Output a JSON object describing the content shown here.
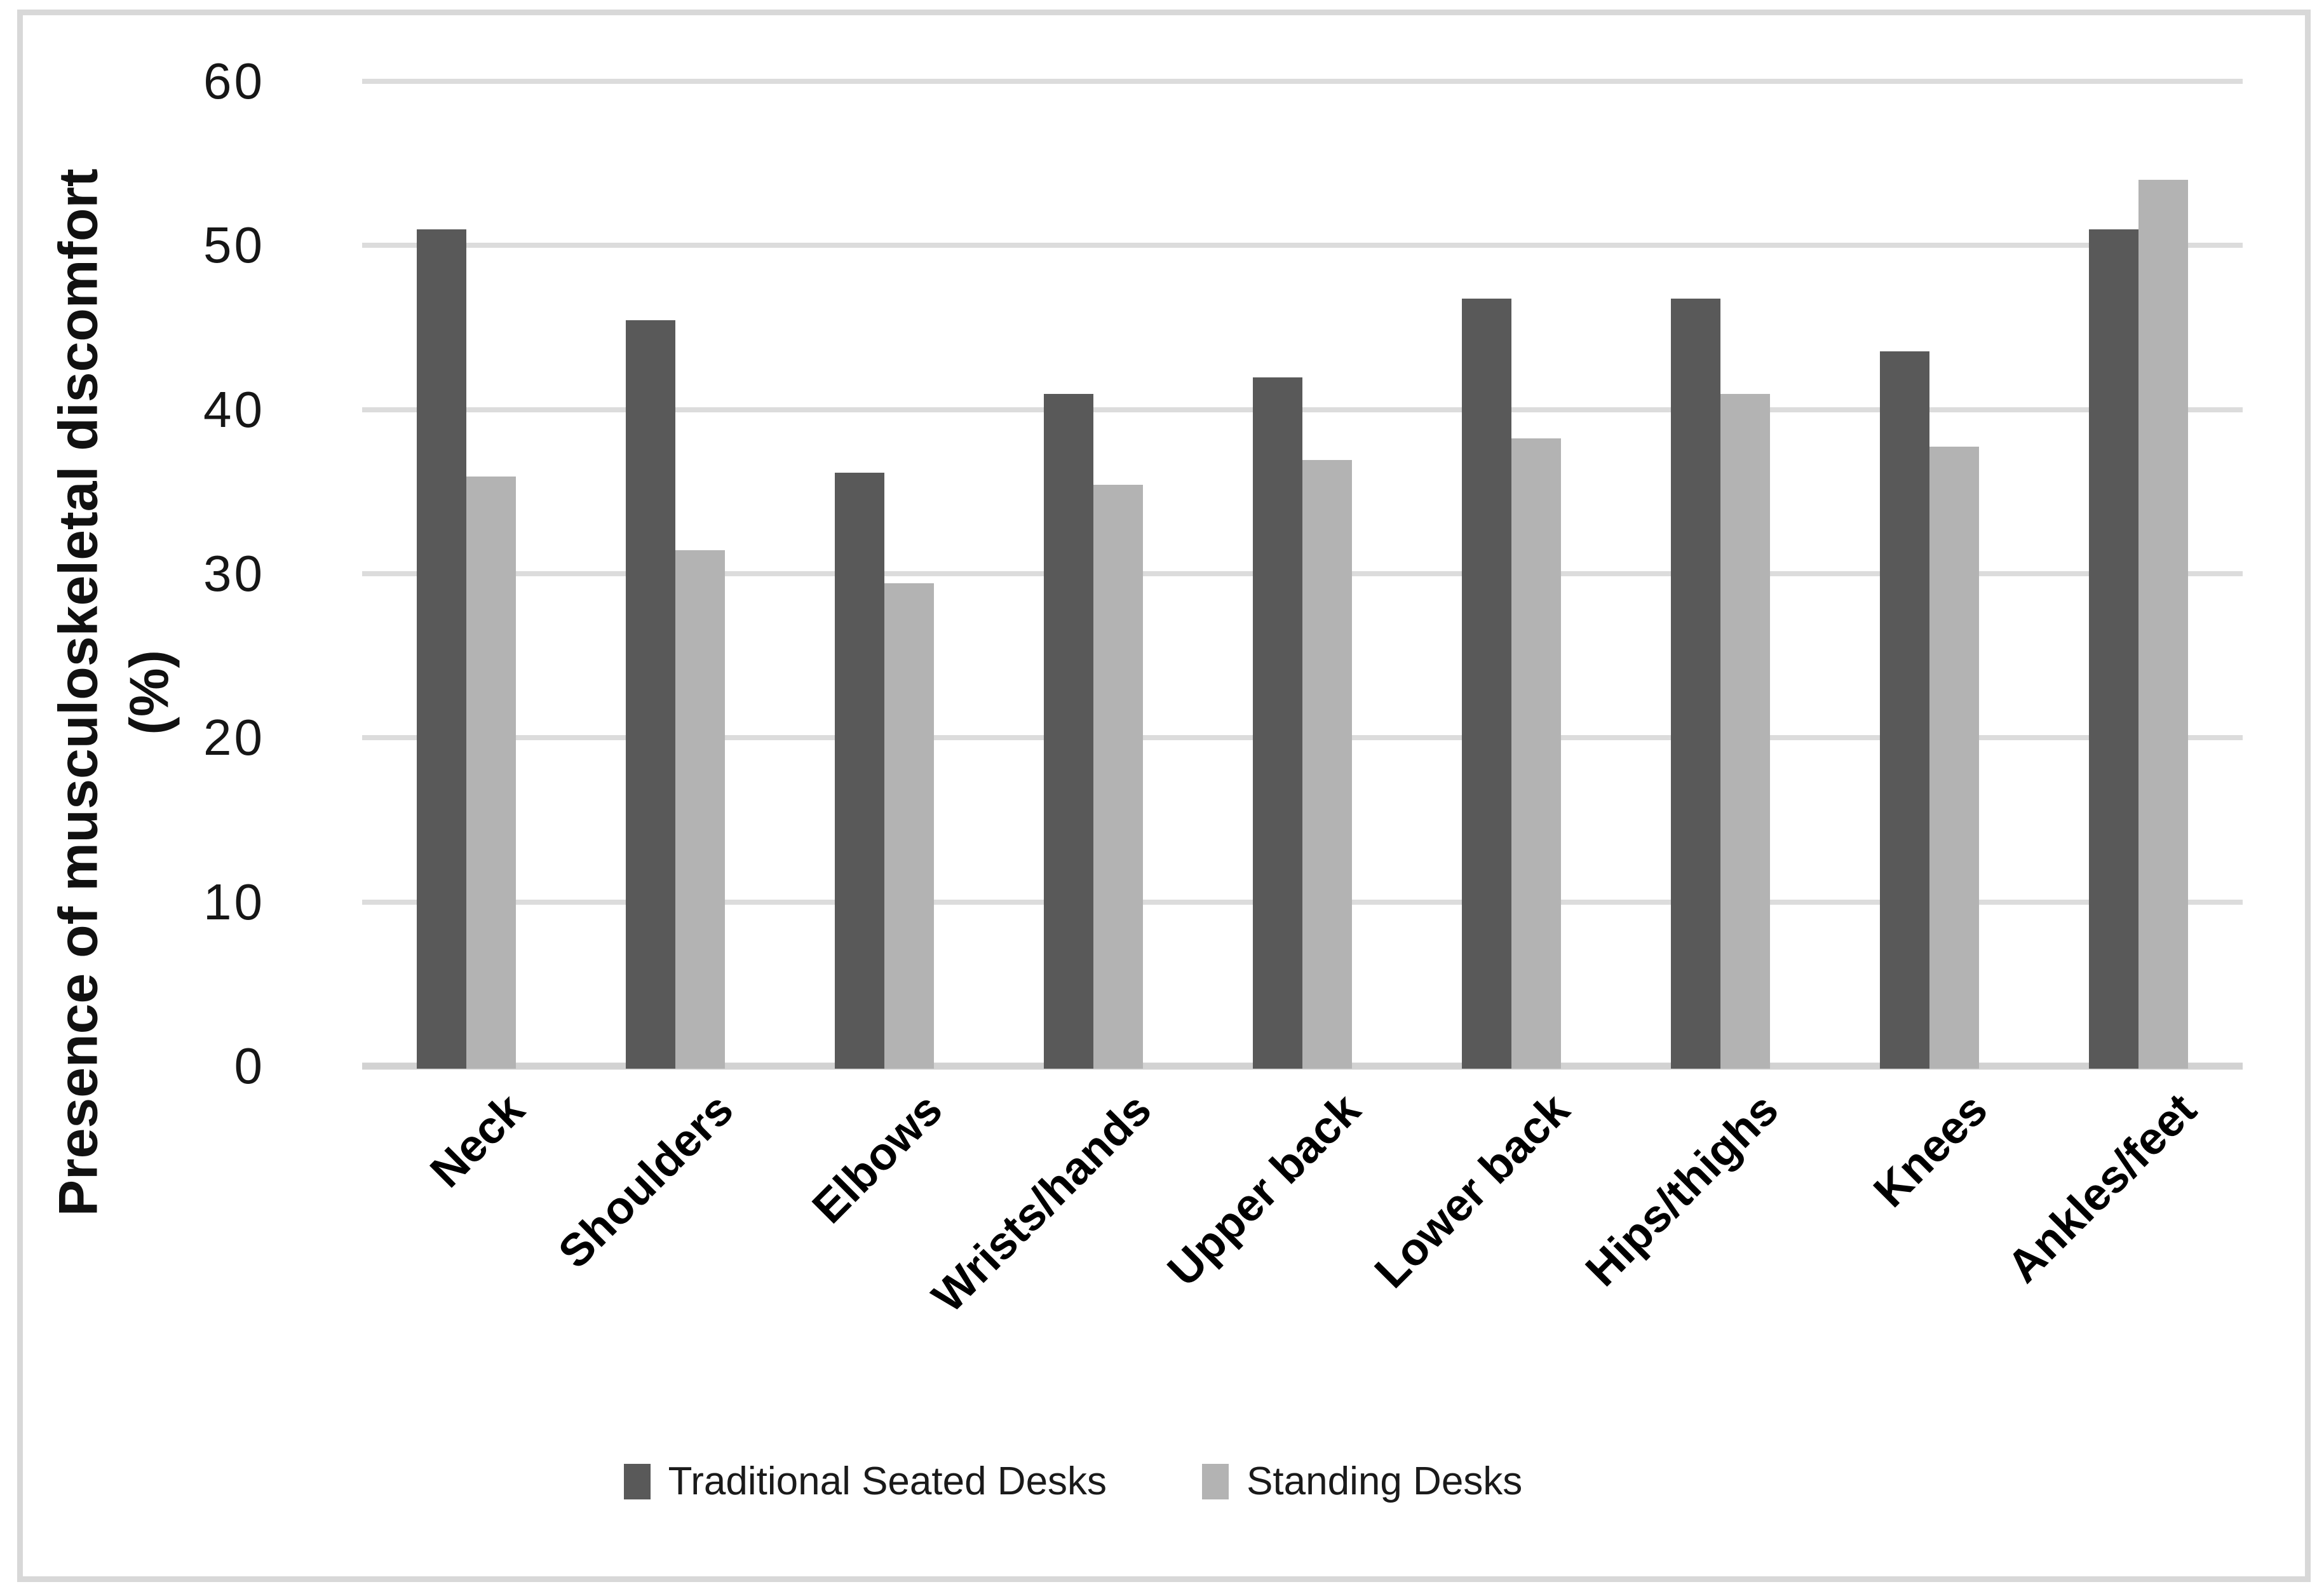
{
  "figure": {
    "y_axis_title_line1": "Presence of musculoskeletal discomfort",
    "y_axis_title_line2": "(%)"
  },
  "legend": {
    "items": [
      {
        "label": "Traditional Seated Desks",
        "color": "#595959"
      },
      {
        "label": "Standing Desks",
        "color": "#b3b3b3"
      }
    ]
  },
  "chart_data": {
    "type": "bar",
    "categories": [
      "Neck",
      "Shoulders",
      "Elbows",
      "Wrists/hands",
      "Upper back",
      "Lower back",
      "Hips/thighs",
      "Knees",
      "Ankles/feet"
    ],
    "series": [
      {
        "name": "Traditional Seated Desks",
        "color": "#595959",
        "values": [
          51,
          45.5,
          36.2,
          41,
          42,
          46.8,
          46.8,
          43.6,
          51
        ]
      },
      {
        "name": "Standing Desks",
        "color": "#b3b3b3",
        "values": [
          36,
          31.5,
          29.5,
          35.5,
          37,
          38.3,
          41,
          37.8,
          54
        ]
      }
    ],
    "title": "",
    "xlabel": "",
    "ylabel": "Presence of musculoskeletal discomfort (%)",
    "ylim": [
      0,
      60
    ],
    "yticks": [
      0,
      10,
      20,
      30,
      40,
      50,
      60
    ],
    "grid": true,
    "legend_position": "bottom"
  },
  "colors": {
    "series_dark": "#595959",
    "series_light": "#b3b3b3",
    "gridline": "#dcdcdc",
    "axis_line": "#d2d2d2",
    "text": "#1a1a1a",
    "frame_border": "#d8d8d8",
    "background": "#ffffff"
  }
}
